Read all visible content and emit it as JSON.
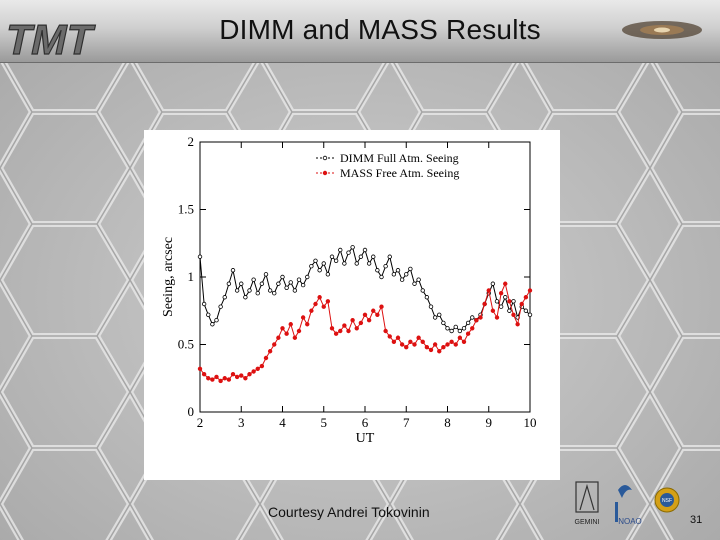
{
  "slide": {
    "title": "DIMM and MASS Results",
    "credit": "Courtesy Andrei Tokovinin",
    "page_number": "31"
  },
  "logos": {
    "tmt": "TMT",
    "gemini": "GEMINI",
    "noao": "NOAO",
    "nsf": "NSF"
  },
  "colors": {
    "dimm": "#000000",
    "mass": "#dd1111",
    "header": "#cfcfcf",
    "background": "#b9b9b9"
  },
  "chart_data": {
    "type": "line",
    "xlabel": "UT",
    "ylabel": "Seeing, arcsec",
    "xlim": [
      2,
      10
    ],
    "ylim": [
      0,
      2
    ],
    "xticks": [
      "2",
      "3",
      "4",
      "5",
      "6",
      "7",
      "8",
      "9",
      "10"
    ],
    "yticks": [
      "0",
      "0.5",
      "1",
      "1.5",
      "2"
    ],
    "legend_position": "top-right",
    "grid": false,
    "series": [
      {
        "name": "DIMM Full Atm. Seeing",
        "color": "#000000",
        "marker": "open-circle",
        "x": [
          2.0,
          2.1,
          2.2,
          2.3,
          2.4,
          2.5,
          2.6,
          2.7,
          2.8,
          2.9,
          3.0,
          3.1,
          3.2,
          3.3,
          3.4,
          3.5,
          3.6,
          3.7,
          3.8,
          3.9,
          4.0,
          4.1,
          4.2,
          4.3,
          4.4,
          4.5,
          4.6,
          4.7,
          4.8,
          4.9,
          5.0,
          5.1,
          5.2,
          5.3,
          5.4,
          5.5,
          5.6,
          5.7,
          5.8,
          5.9,
          6.0,
          6.1,
          6.2,
          6.3,
          6.4,
          6.5,
          6.6,
          6.7,
          6.8,
          6.9,
          7.0,
          7.1,
          7.2,
          7.3,
          7.4,
          7.5,
          7.6,
          7.7,
          7.8,
          7.9,
          8.0,
          8.1,
          8.2,
          8.3,
          8.4,
          8.5,
          8.6,
          8.7,
          8.8,
          8.9,
          9.0,
          9.1,
          9.2,
          9.3,
          9.4,
          9.5,
          9.6,
          9.7,
          9.8,
          9.9,
          10.0
        ],
        "y": [
          1.15,
          0.8,
          0.72,
          0.65,
          0.68,
          0.78,
          0.85,
          0.95,
          1.05,
          0.9,
          0.95,
          0.85,
          0.9,
          0.98,
          0.88,
          0.95,
          1.02,
          0.9,
          0.88,
          0.95,
          1.0,
          0.92,
          0.96,
          0.9,
          0.98,
          0.94,
          1.0,
          1.08,
          1.12,
          1.05,
          1.1,
          1.02,
          1.15,
          1.12,
          1.2,
          1.1,
          1.18,
          1.22,
          1.1,
          1.15,
          1.2,
          1.1,
          1.15,
          1.05,
          1.0,
          1.08,
          1.15,
          1.02,
          1.05,
          0.98,
          1.02,
          1.06,
          0.95,
          0.98,
          0.9,
          0.85,
          0.78,
          0.7,
          0.72,
          0.66,
          0.62,
          0.6,
          0.63,
          0.6,
          0.62,
          0.66,
          0.7,
          0.68,
          0.72,
          0.8,
          0.88,
          0.95,
          0.82,
          0.78,
          0.85,
          0.75,
          0.82,
          0.7,
          0.78,
          0.75,
          0.72
        ]
      },
      {
        "name": "MASS Free Atm. Seeing",
        "color": "#dd1111",
        "marker": "filled-circle",
        "x": [
          2.0,
          2.1,
          2.2,
          2.3,
          2.4,
          2.5,
          2.6,
          2.7,
          2.8,
          2.9,
          3.0,
          3.1,
          3.2,
          3.3,
          3.4,
          3.5,
          3.6,
          3.7,
          3.8,
          3.9,
          4.0,
          4.1,
          4.2,
          4.3,
          4.4,
          4.5,
          4.6,
          4.7,
          4.8,
          4.9,
          5.0,
          5.1,
          5.2,
          5.3,
          5.4,
          5.5,
          5.6,
          5.7,
          5.8,
          5.9,
          6.0,
          6.1,
          6.2,
          6.3,
          6.4,
          6.5,
          6.6,
          6.7,
          6.8,
          6.9,
          7.0,
          7.1,
          7.2,
          7.3,
          7.4,
          7.5,
          7.6,
          7.7,
          7.8,
          7.9,
          8.0,
          8.1,
          8.2,
          8.3,
          8.4,
          8.5,
          8.6,
          8.7,
          8.8,
          8.9,
          9.0,
          9.1,
          9.2,
          9.3,
          9.4,
          9.5,
          9.6,
          9.7,
          9.8,
          9.9,
          10.0
        ],
        "y": [
          0.32,
          0.28,
          0.25,
          0.24,
          0.26,
          0.23,
          0.25,
          0.24,
          0.28,
          0.26,
          0.27,
          0.25,
          0.28,
          0.3,
          0.32,
          0.34,
          0.4,
          0.45,
          0.5,
          0.55,
          0.62,
          0.58,
          0.65,
          0.55,
          0.6,
          0.7,
          0.65,
          0.75,
          0.8,
          0.85,
          0.78,
          0.82,
          0.62,
          0.58,
          0.6,
          0.64,
          0.6,
          0.68,
          0.62,
          0.66,
          0.72,
          0.68,
          0.75,
          0.72,
          0.78,
          0.6,
          0.56,
          0.52,
          0.55,
          0.5,
          0.48,
          0.52,
          0.5,
          0.55,
          0.52,
          0.48,
          0.46,
          0.5,
          0.45,
          0.48,
          0.5,
          0.52,
          0.5,
          0.55,
          0.52,
          0.58,
          0.62,
          0.68,
          0.7,
          0.8,
          0.9,
          0.75,
          0.7,
          0.88,
          0.95,
          0.82,
          0.72,
          0.65,
          0.8,
          0.85,
          0.9
        ]
      }
    ]
  }
}
